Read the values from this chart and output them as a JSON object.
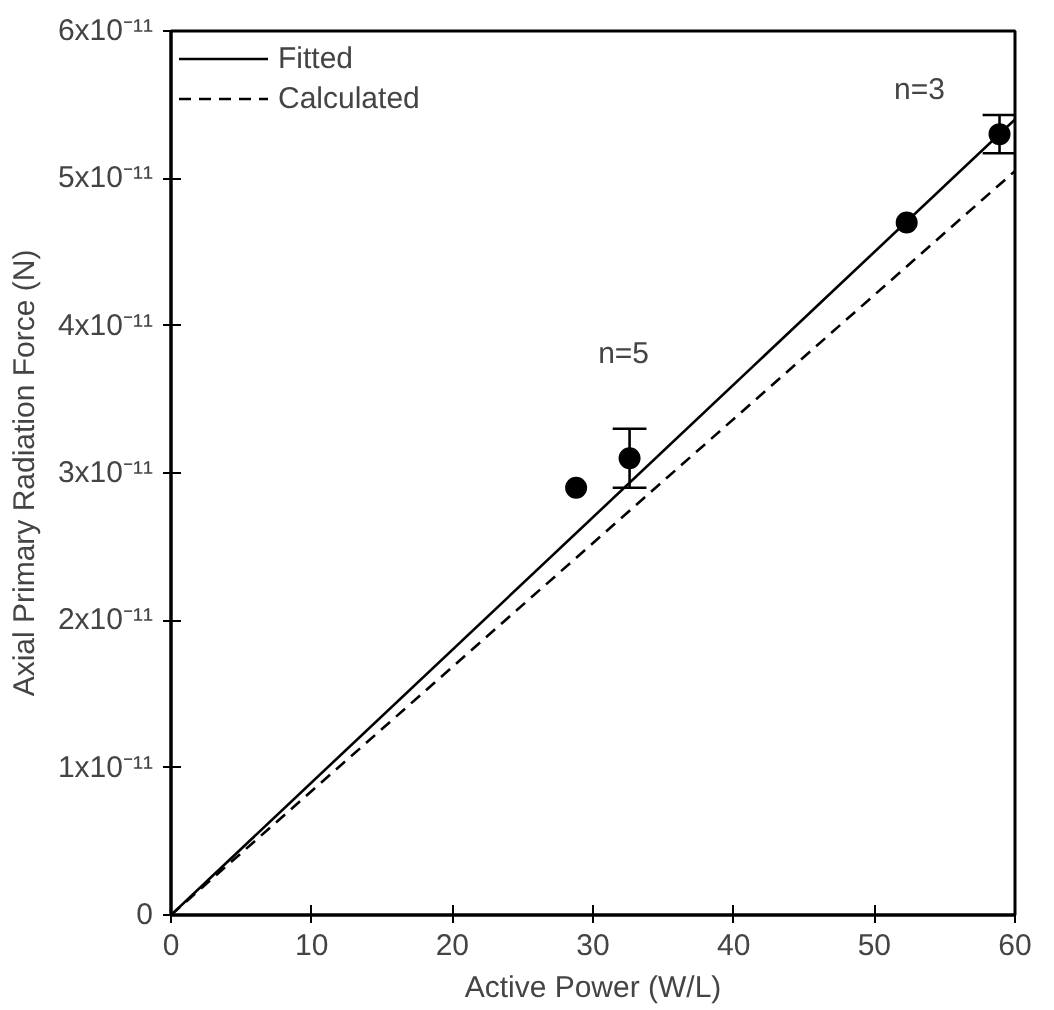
{
  "chart_data": {
    "type": "line",
    "xlabel": "Active Power (W/L)",
    "ylabel": "Axial Primary Radiation Force (N)",
    "xlim": [
      0,
      60
    ],
    "ylim": [
      0,
      6e-11
    ],
    "xticks": [
      0,
      10,
      20,
      30,
      40,
      50,
      60
    ],
    "yticks": [
      0,
      {
        "value": 1e-11,
        "label": "1x10⁻¹¹"
      },
      {
        "value": 2e-11,
        "label": "2x10⁻¹¹"
      },
      {
        "value": 3e-11,
        "label": "3x10⁻¹¹"
      },
      {
        "value": 4e-11,
        "label": "4x10⁻¹¹"
      },
      {
        "value": 5e-11,
        "label": "5x10⁻¹¹"
      },
      {
        "value": 6e-11,
        "label": "6x10⁻¹¹"
      }
    ],
    "series": [
      {
        "name": "Fitted",
        "color": "#000000",
        "line_style": "solid",
        "x": [
          0,
          60
        ],
        "values": [
          0,
          5.4e-11
        ]
      },
      {
        "name": "Calculated",
        "color": "#000000",
        "line_style": "dashed",
        "x": [
          0,
          60
        ],
        "values": [
          0,
          5.05e-11
        ]
      },
      {
        "type": "scatter",
        "color": "#000000",
        "marker": "circle",
        "x": [
          28.8,
          32.6,
          52.3,
          58.9
        ],
        "values": [
          2.9e-11,
          3.1e-11,
          4.7e-11,
          5.3e-11
        ],
        "errors": [
          null,
          2e-12,
          null,
          1.3e-12
        ]
      }
    ],
    "annotations": [
      {
        "text": "n=5",
        "x": 32.6,
        "y": 3.1e-11
      },
      {
        "text": "n=3",
        "x": 58.9,
        "y": 5.3e-11
      }
    ],
    "legend": "top left",
    "grid": false
  }
}
